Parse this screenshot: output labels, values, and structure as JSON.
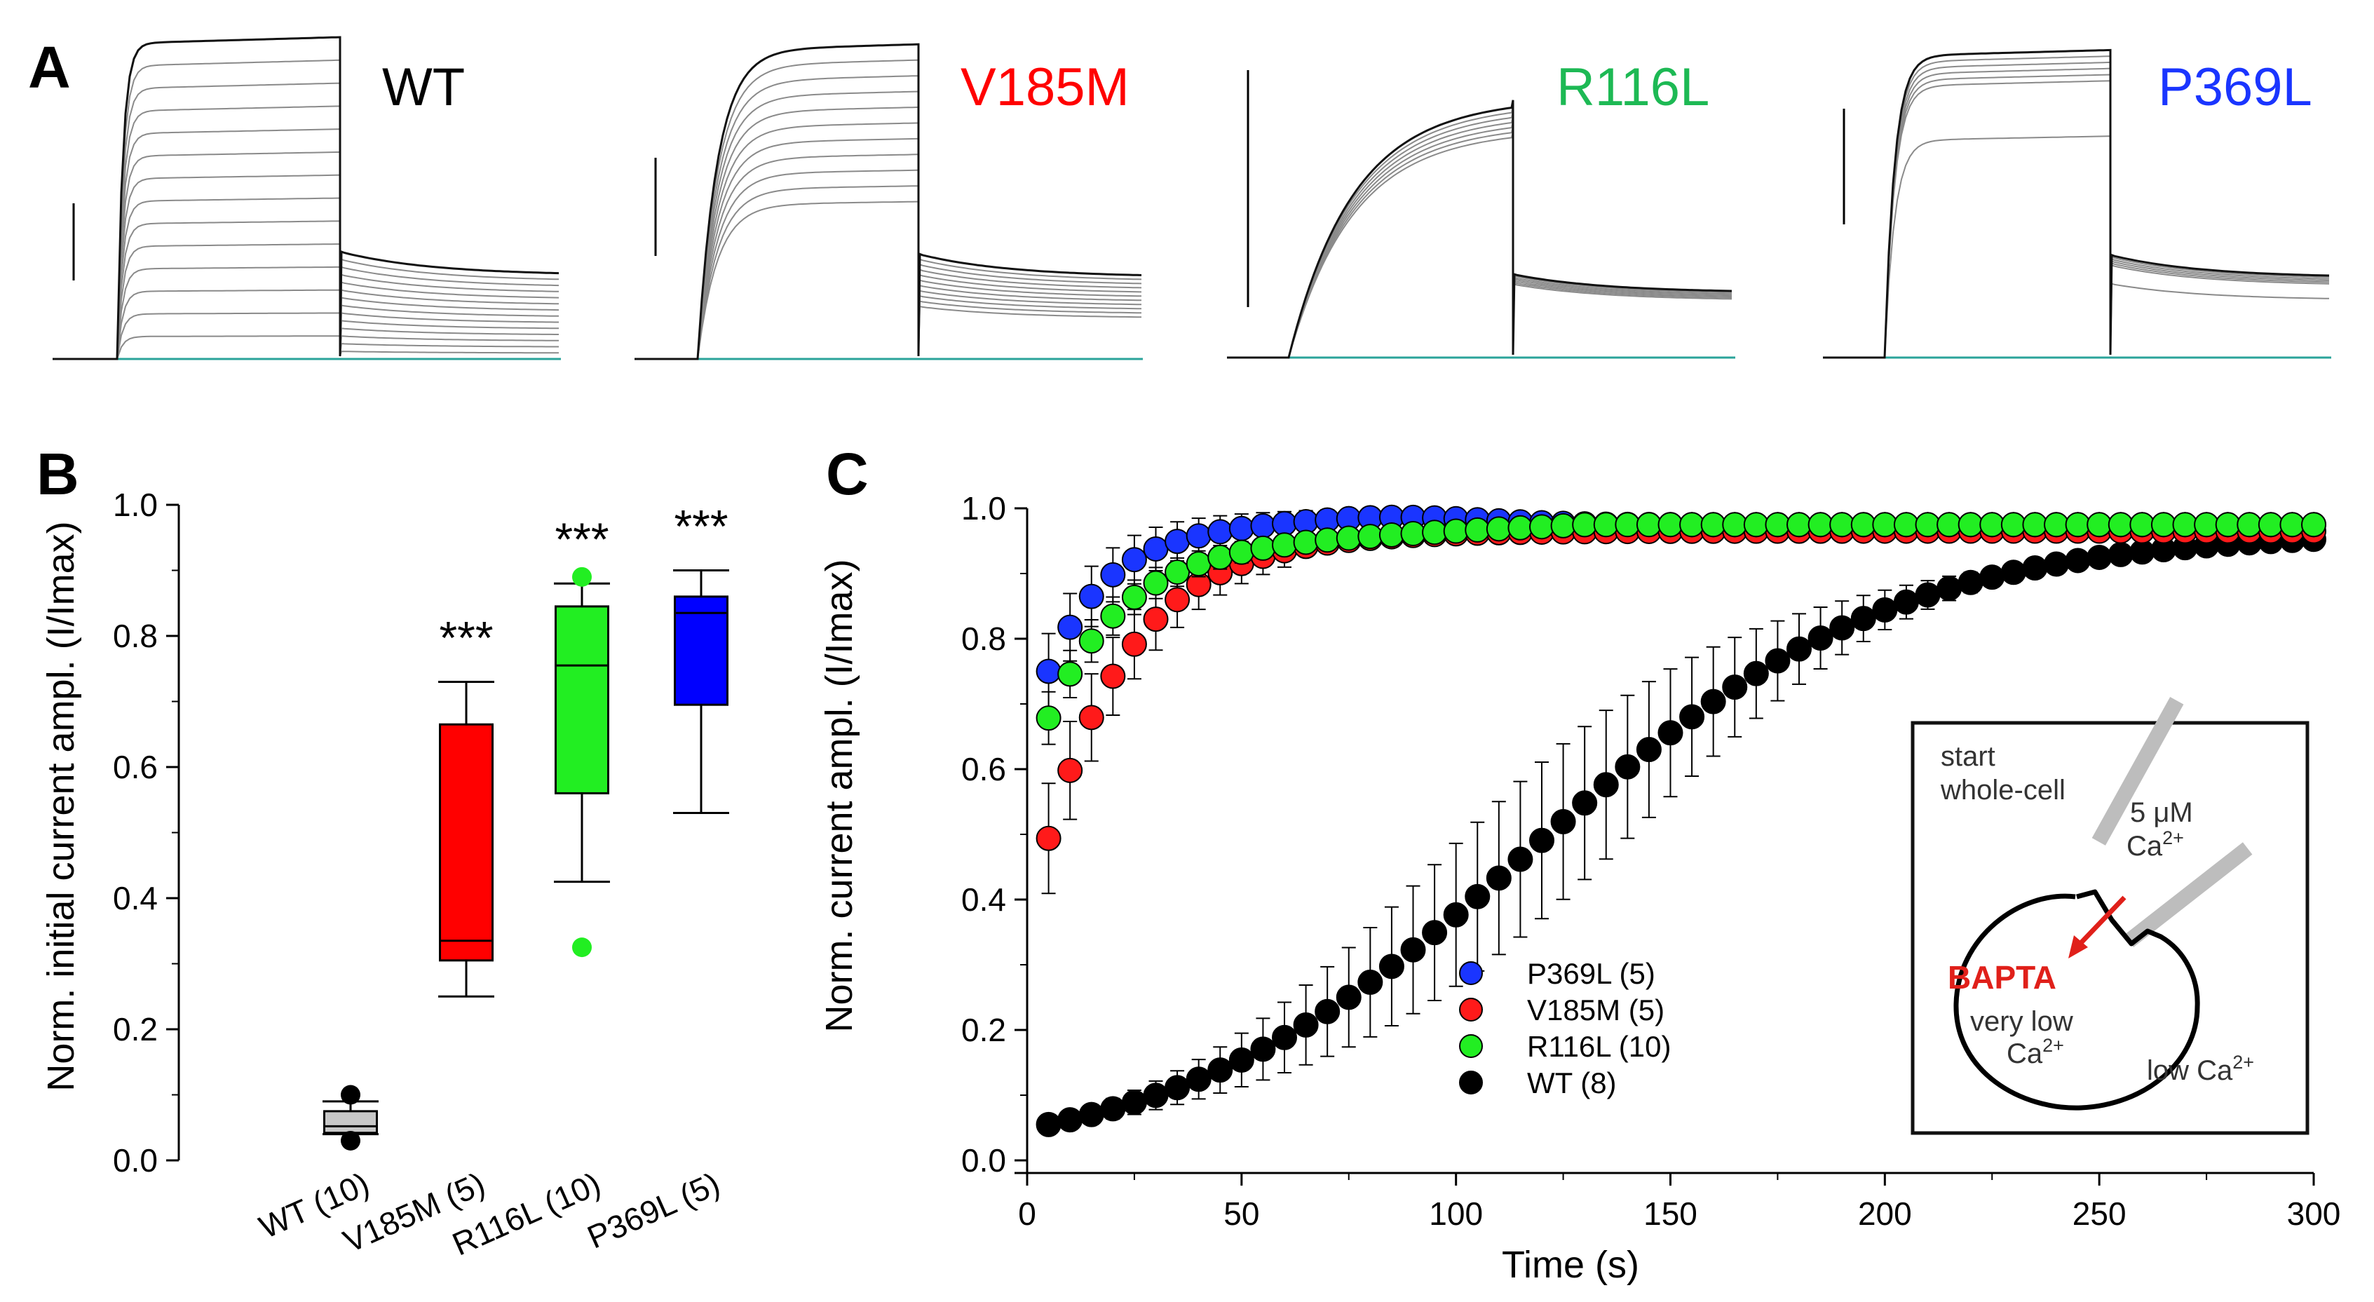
{
  "panel_labels": {
    "a": "A",
    "b": "B",
    "c": "C"
  },
  "panel_a": {
    "traces": [
      {
        "label": "WT",
        "color": "#000000"
      },
      {
        "label": "V185M",
        "color": "#ff0000"
      },
      {
        "label": "R116L",
        "color": "#1db954"
      },
      {
        "label": "P369L",
        "color": "#1a35ff"
      }
    ]
  },
  "panel_b_text": {
    "ylabel": "Norm. initial current ampl. (I/Imax)",
    "significance": "***"
  },
  "panel_c_text": {
    "ylabel": "Norm. current ampl. (I/Imax)",
    "xlabel": "Time (s)"
  },
  "inset": {
    "start": "start",
    "wholecell": "whole-cell",
    "conc": "5 μM",
    "ca_base": "Ca",
    "ca_sup": "2+",
    "bapta": "BAPTA",
    "very_low": "very low",
    "low": "low Ca"
  },
  "chart_data": [
    {
      "type": "box",
      "title": "B",
      "categories": [
        "WT (10)",
        "V185M (5)",
        "R116L (10)",
        "P369L (5)"
      ],
      "ylabel": "Norm. initial current ampl. (I/Imax)",
      "ylim": [
        0,
        1.0
      ],
      "yticks": [
        "0.0",
        "0.2",
        "0.4",
        "0.6",
        "0.8",
        "1.0"
      ],
      "colors": [
        "#c8c8c8",
        "#ff0000",
        "#22ee22",
        "#0000ff"
      ],
      "boxes": [
        {
          "whisker_low": 0.04,
          "q1": 0.042,
          "median": 0.052,
          "q3": 0.075,
          "whisker_high": 0.09,
          "outliers": [
            0.03,
            0.1
          ],
          "outlier_color": "#000000",
          "sig": ""
        },
        {
          "whisker_low": 0.25,
          "q1": 0.305,
          "median": 0.335,
          "q3": 0.665,
          "whisker_high": 0.73,
          "outliers": [],
          "outlier_color": "#ff0000",
          "sig": "***"
        },
        {
          "whisker_low": 0.425,
          "q1": 0.56,
          "median": 0.755,
          "q3": 0.845,
          "whisker_high": 0.88,
          "outliers": [
            0.325,
            0.89
          ],
          "outlier_color": "#22ee22",
          "sig": "***"
        },
        {
          "whisker_low": 0.53,
          "q1": 0.695,
          "median": 0.835,
          "q3": 0.86,
          "whisker_high": 0.9,
          "outliers": [],
          "outlier_color": "#0000ff",
          "sig": "***"
        }
      ]
    },
    {
      "type": "scatter",
      "title": "C",
      "xlabel": "Time (s)",
      "ylabel": "Norm. current ampl. (I/Imax)",
      "xlim": [
        0,
        300
      ],
      "ylim": [
        0,
        1.0
      ],
      "xticks": [
        "0",
        "50",
        "100",
        "150",
        "200",
        "250",
        "300"
      ],
      "yticks": [
        "0.0",
        "0.2",
        "0.4",
        "0.6",
        "0.8",
        "1.0"
      ],
      "series": [
        {
          "name": "WT (8)",
          "color": "#000000",
          "model": "sigmoid",
          "y0": 0.055,
          "ymax": 0.965,
          "t50": 118,
          "k": 42,
          "err_start": 0.005,
          "err_peak": 0.12,
          "err_end": 0.02
        },
        {
          "name": "V185M (5)",
          "color": "#ff1a1a",
          "model": "exp",
          "y0": 0.36,
          "plateau": 0.965,
          "tau": 20,
          "err_start": 0.095,
          "err_peak": 0.095,
          "err_end": 0.005
        },
        {
          "name": "R116L (10)",
          "color": "#22ee22",
          "model": "exp2",
          "y0": 0.705,
          "plateau": 0.975,
          "tau": 17,
          "err_start": 0.045,
          "err_peak": 0.045,
          "err_end": 0.005
        },
        {
          "name": "P369L (5)",
          "color": "#1a35ff",
          "model": "peak",
          "y0": 0.75,
          "plateau": 0.975,
          "tau": 14,
          "err_start": 0.065,
          "err_peak": 0.065,
          "err_end": 0.005
        }
      ],
      "legend_order": [
        "P369L (5)",
        "V185M (5)",
        "R116L (10)",
        "WT (8)"
      ]
    }
  ]
}
